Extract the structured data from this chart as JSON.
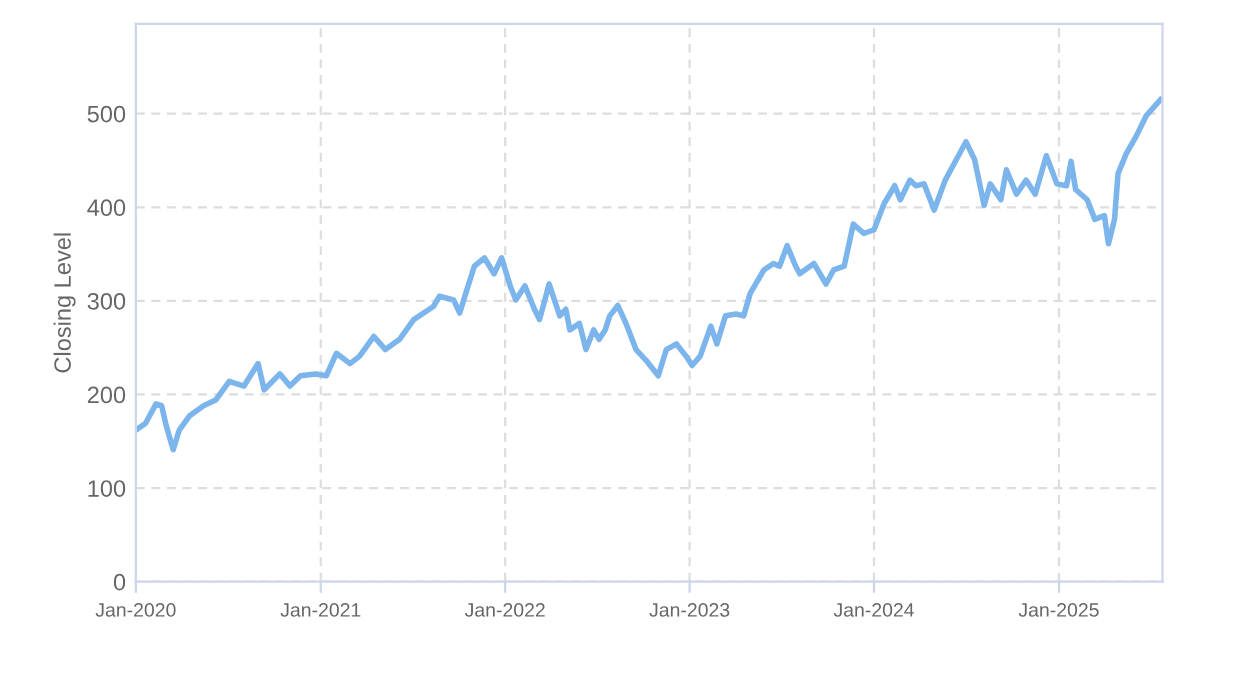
{
  "chart_data": {
    "type": "line",
    "ylabel": "Closing Level",
    "x": [
      "2020-01-01",
      "2020-01-20",
      "2020-02-10",
      "2020-02-21",
      "2020-03-01",
      "2020-03-15",
      "2020-03-27",
      "2020-04-16",
      "2020-05-14",
      "2020-06-07",
      "2020-07-04",
      "2020-08-02",
      "2020-08-30",
      "2020-09-11",
      "2020-10-12",
      "2020-11-01",
      "2020-11-22",
      "2020-12-22",
      "2021-01-12",
      "2021-02-01",
      "2021-02-28",
      "2021-03-19",
      "2021-04-16",
      "2021-05-09",
      "2021-06-06",
      "2021-07-04",
      "2021-08-12",
      "2021-08-24",
      "2021-09-21",
      "2021-10-03",
      "2021-10-15",
      "2021-11-01",
      "2021-11-21",
      "2021-12-10",
      "2021-12-25",
      "2022-01-11",
      "2022-01-22",
      "2022-02-09",
      "2022-02-28",
      "2022-03-10",
      "2022-03-29",
      "2022-04-19",
      "2022-05-01",
      "2022-05-09",
      "2022-05-28",
      "2022-06-10",
      "2022-06-25",
      "2022-07-06",
      "2022-07-18",
      "2022-07-27",
      "2022-08-12",
      "2022-08-28",
      "2022-09-17",
      "2022-10-06",
      "2022-10-31",
      "2022-11-16",
      "2022-12-06",
      "2022-12-25",
      "2023-01-06",
      "2023-01-22",
      "2023-02-12",
      "2023-02-24",
      "2023-03-13",
      "2023-04-03",
      "2023-04-18",
      "2023-05-01",
      "2023-05-28",
      "2023-06-16",
      "2023-06-28",
      "2023-07-13",
      "2023-07-30",
      "2023-08-07",
      "2023-09-04",
      "2023-09-28",
      "2023-10-13",
      "2023-11-03",
      "2023-11-21",
      "2023-12-12",
      "2024-01-01",
      "2024-01-21",
      "2024-02-11",
      "2024-02-22",
      "2024-03-12",
      "2024-03-24",
      "2024-04-09",
      "2024-04-29",
      "2024-05-21",
      "2024-06-12",
      "2024-07-01",
      "2024-07-18",
      "2024-08-06",
      "2024-08-18",
      "2024-09-08",
      "2024-09-19",
      "2024-10-09",
      "2024-10-28",
      "2024-11-15",
      "2024-12-07",
      "2024-12-28",
      "2025-01-16",
      "2025-01-25",
      "2025-02-03",
      "2025-02-26",
      "2025-03-13",
      "2025-04-01",
      "2025-04-09",
      "2025-04-21",
      "2025-04-28",
      "2025-05-14",
      "2025-06-03",
      "2025-06-23",
      "2025-07-21"
    ],
    "series": [
      {
        "color": "#7cb5ec",
        "values": [
          162,
          169,
          190,
          188,
          167,
          141,
          162,
          177,
          188,
          194,
          214,
          209,
          233,
          205,
          222,
          209,
          220,
          222,
          220,
          244,
          233,
          241,
          262,
          248,
          259,
          280,
          294,
          305,
          301,
          287,
          308,
          337,
          346,
          329,
          346,
          316,
          301,
          316,
          291,
          280,
          318,
          284,
          291,
          269,
          276,
          248,
          269,
          259,
          269,
          284,
          295,
          276,
          248,
          237,
          220,
          248,
          254,
          241,
          231,
          241,
          273,
          254,
          284,
          286,
          284,
          308,
          333,
          340,
          337,
          359,
          337,
          329,
          340,
          318,
          333,
          337,
          382,
          372,
          376,
          404,
          423,
          408,
          429,
          423,
          425,
          397,
          429,
          451,
          470,
          451,
          402,
          425,
          408,
          440,
          414,
          429,
          414,
          455,
          425,
          423,
          449,
          419,
          408,
          387,
          391,
          361,
          387,
          436,
          457,
          476,
          498,
          515
        ]
      }
    ],
    "xlim": [
      "2020-01-01",
      "2025-07-25"
    ],
    "xticks": [
      {
        "value": "2020-01-01",
        "label": "Jan-2020"
      },
      {
        "value": "2021-01-01",
        "label": "Jan-2021"
      },
      {
        "value": "2022-01-01",
        "label": "Jan-2022"
      },
      {
        "value": "2023-01-01",
        "label": "Jan-2023"
      },
      {
        "value": "2024-01-01",
        "label": "Jan-2024"
      },
      {
        "value": "2025-01-01",
        "label": "Jan-2025"
      }
    ],
    "ylim": [
      0,
      596
    ],
    "yticks": [
      0,
      100,
      200,
      300,
      400,
      500
    ],
    "grid": true,
    "marker": "none",
    "line_style": "solid"
  }
}
